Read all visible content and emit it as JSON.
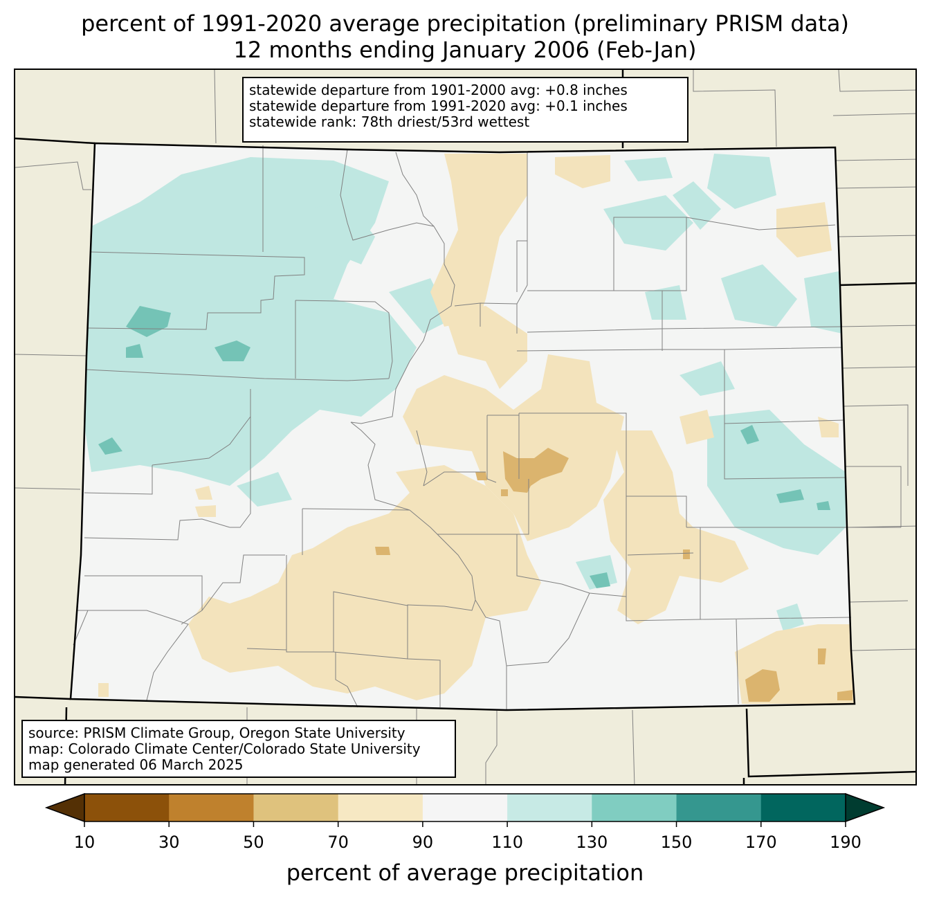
{
  "title": {
    "line1": "percent of 1991-2020 average precipitation (preliminary PRISM data)",
    "line2": "12 months ending January 2006 (Feb-Jan)"
  },
  "stats": {
    "line1": "statewide departure from 1901-2000 avg: +0.8 inches",
    "line2": "statewide departure from 1991-2020 avg: +0.1 inches",
    "line3": "statewide rank: 78th driest/53rd wettest"
  },
  "source": {
    "line1": "source: PRISM Climate Group, Oregon State University",
    "line2": "map: Colorado Climate Center/Colorado State University",
    "line3": "map generated 06 March 2025"
  },
  "colorbar": {
    "label": "percent of average precipitation",
    "ticks": [
      "10",
      "30",
      "50",
      "70",
      "90",
      "110",
      "130",
      "150",
      "170",
      "190"
    ],
    "under_color": "#543005",
    "over_color": "#003c30",
    "bins": [
      {
        "range": "10-30",
        "color": "#8c510a"
      },
      {
        "range": "30-50",
        "color": "#bf812d"
      },
      {
        "range": "50-70",
        "color": "#dfc27d"
      },
      {
        "range": "70-90",
        "color": "#f6e8c3"
      },
      {
        "range": "90-110",
        "color": "#f5f5f5"
      },
      {
        "range": "110-130",
        "color": "#c7eae5"
      },
      {
        "range": "130-150",
        "color": "#80cdc1"
      },
      {
        "range": "150-170",
        "color": "#35978f"
      },
      {
        "range": "170-190",
        "color": "#01665e"
      }
    ]
  },
  "map_colors": {
    "background": "#efeddc",
    "state_fill": "#f4f5f4",
    "dry": "#f3e3bc",
    "dry_strong": "#dbb46e",
    "wet": "#bfe7e1",
    "wet_strong": "#74c3b6",
    "county_lines": "#808080",
    "state_border": "#000000"
  }
}
